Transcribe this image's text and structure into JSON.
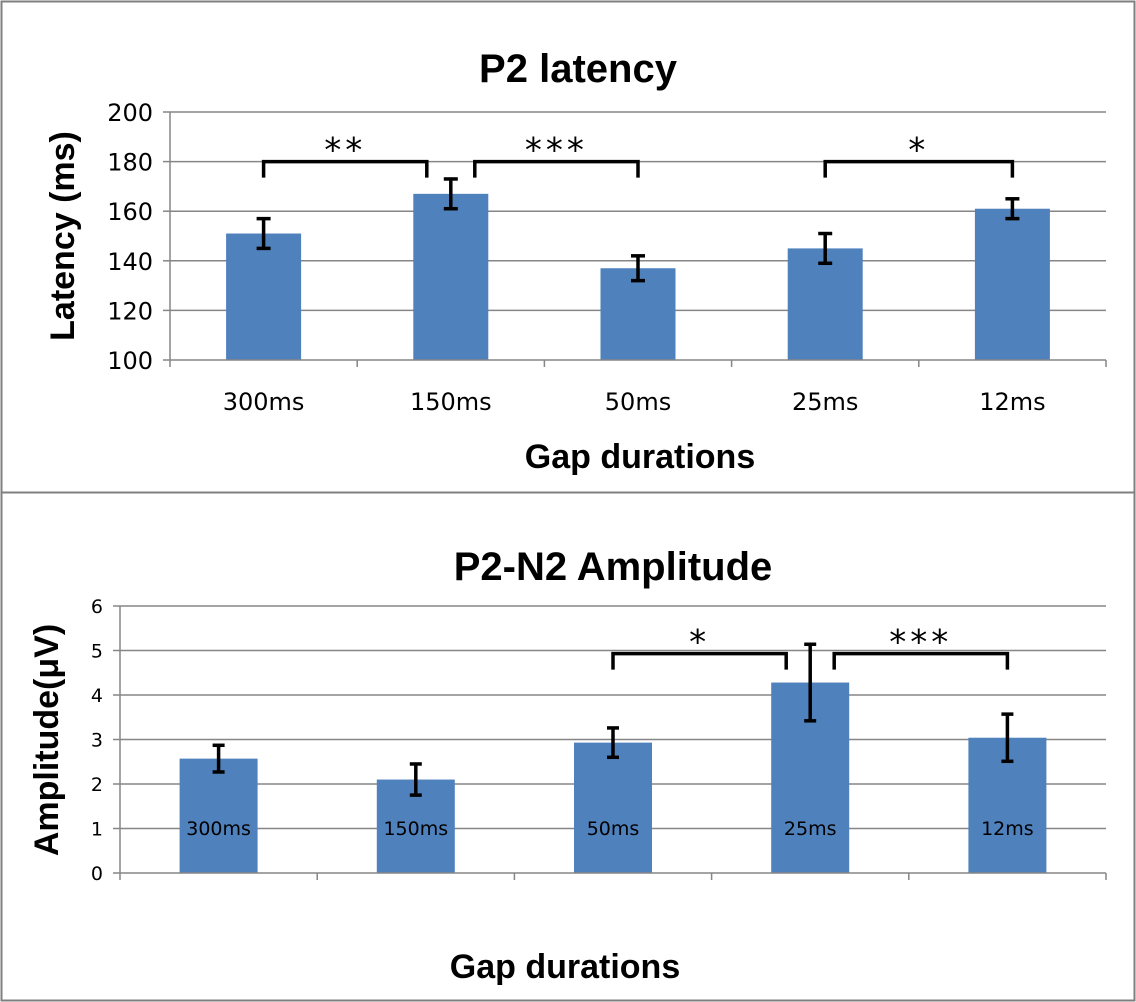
{
  "colors": {
    "bar": "#4f81bd",
    "grid": "#868686",
    "axis": "#868686",
    "frame": "#7f7f7f",
    "error": "#000000"
  },
  "chart_data": [
    {
      "type": "bar",
      "title": "P2 latency",
      "xlabel": "Gap durations",
      "ylabel": "Latency (ms)",
      "ylim": [
        100,
        200
      ],
      "yticks": [
        "100",
        "120",
        "140",
        "160",
        "180",
        "200"
      ],
      "grid": true,
      "categories": [
        "300ms",
        "150ms",
        "50ms",
        "25ms",
        "12ms"
      ],
      "values": [
        151,
        167,
        137,
        145,
        161
      ],
      "errors": [
        6,
        6,
        5,
        6,
        4
      ],
      "significance": [
        {
          "from": 0,
          "to": 1,
          "label": "**",
          "y": 180
        },
        {
          "from": 1,
          "to": 2,
          "label": "***",
          "y": 180
        },
        {
          "from": 3,
          "to": 4,
          "label": "*",
          "y": 180
        }
      ]
    },
    {
      "type": "bar",
      "title": "P2-N2 Amplitude",
      "xlabel": "Gap durations",
      "ylabel": "Amplitude(μV)",
      "ylim": [
        0,
        6
      ],
      "yticks": [
        "0",
        "1",
        "2",
        "3",
        "4",
        "5",
        "6"
      ],
      "grid": true,
      "categories": [
        "300ms",
        "150ms",
        "50ms",
        "25ms",
        "12ms"
      ],
      "values": [
        2.57,
        2.1,
        2.93,
        4.28,
        3.04
      ],
      "errors": [
        0.3,
        0.35,
        0.33,
        0.86,
        0.53
      ],
      "significance": [
        {
          "from": 2,
          "to": 3,
          "label": "*",
          "y": 4.93
        },
        {
          "from": 3,
          "to": 4,
          "label": "***",
          "y": 4.93
        }
      ]
    }
  ]
}
